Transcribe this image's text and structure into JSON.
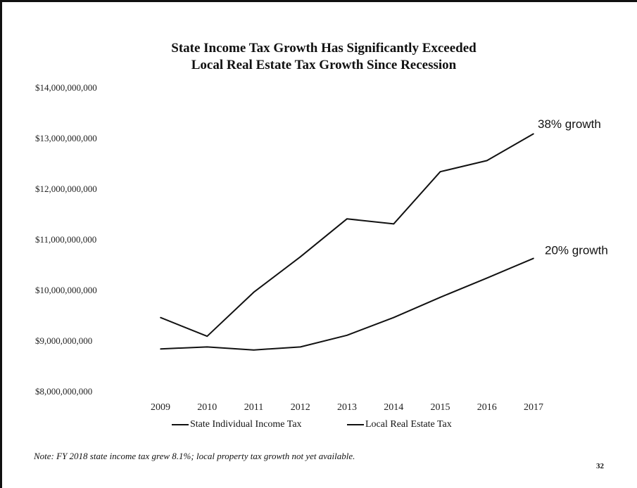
{
  "chart_data": {
    "type": "line",
    "title": "State Income Tax Growth Has Significantly Exceeded Local Real Estate Tax Growth Since Recession",
    "title_lines": [
      "State Income Tax Growth Has Significantly Exceeded",
      "Local Real Estate Tax Growth Since Recession"
    ],
    "categories": [
      "2009",
      "2010",
      "2011",
      "2012",
      "2013",
      "2014",
      "2015",
      "2016",
      "2017"
    ],
    "y_ticks": [
      "$14,000,000,000",
      "$13,000,000,000",
      "$12,000,000,000",
      "$11,000,000,000",
      "$10,000,000,000",
      "$9,000,000,000",
      "$8,000,000,000"
    ],
    "y_tick_values": [
      14000000000,
      13000000000,
      12000000000,
      11000000000,
      10000000000,
      9000000000,
      8000000000
    ],
    "ylim": [
      8000000000,
      14000000000
    ],
    "grid": false,
    "legend_position": "bottom",
    "series": [
      {
        "name": "State Individual Income Tax",
        "color": "#111111",
        "values": [
          9450000000,
          9080000000,
          9950000000,
          10650000000,
          11400000000,
          11300000000,
          12330000000,
          12550000000,
          13080000000
        ],
        "annotation": "38% growth"
      },
      {
        "name": "Local Real Estate Tax",
        "color": "#111111",
        "values": [
          8830000000,
          8870000000,
          8810000000,
          8870000000,
          9100000000,
          9450000000,
          9850000000,
          10230000000,
          10620000000
        ],
        "annotation": "20% growth"
      }
    ]
  },
  "legend": {
    "item1": "State Individual Income Tax",
    "item2": "Local Real Estate Tax"
  },
  "note": "Note: FY 2018 state income tax grew 8.1%; local property tax growth not yet available.",
  "page_number": "32"
}
